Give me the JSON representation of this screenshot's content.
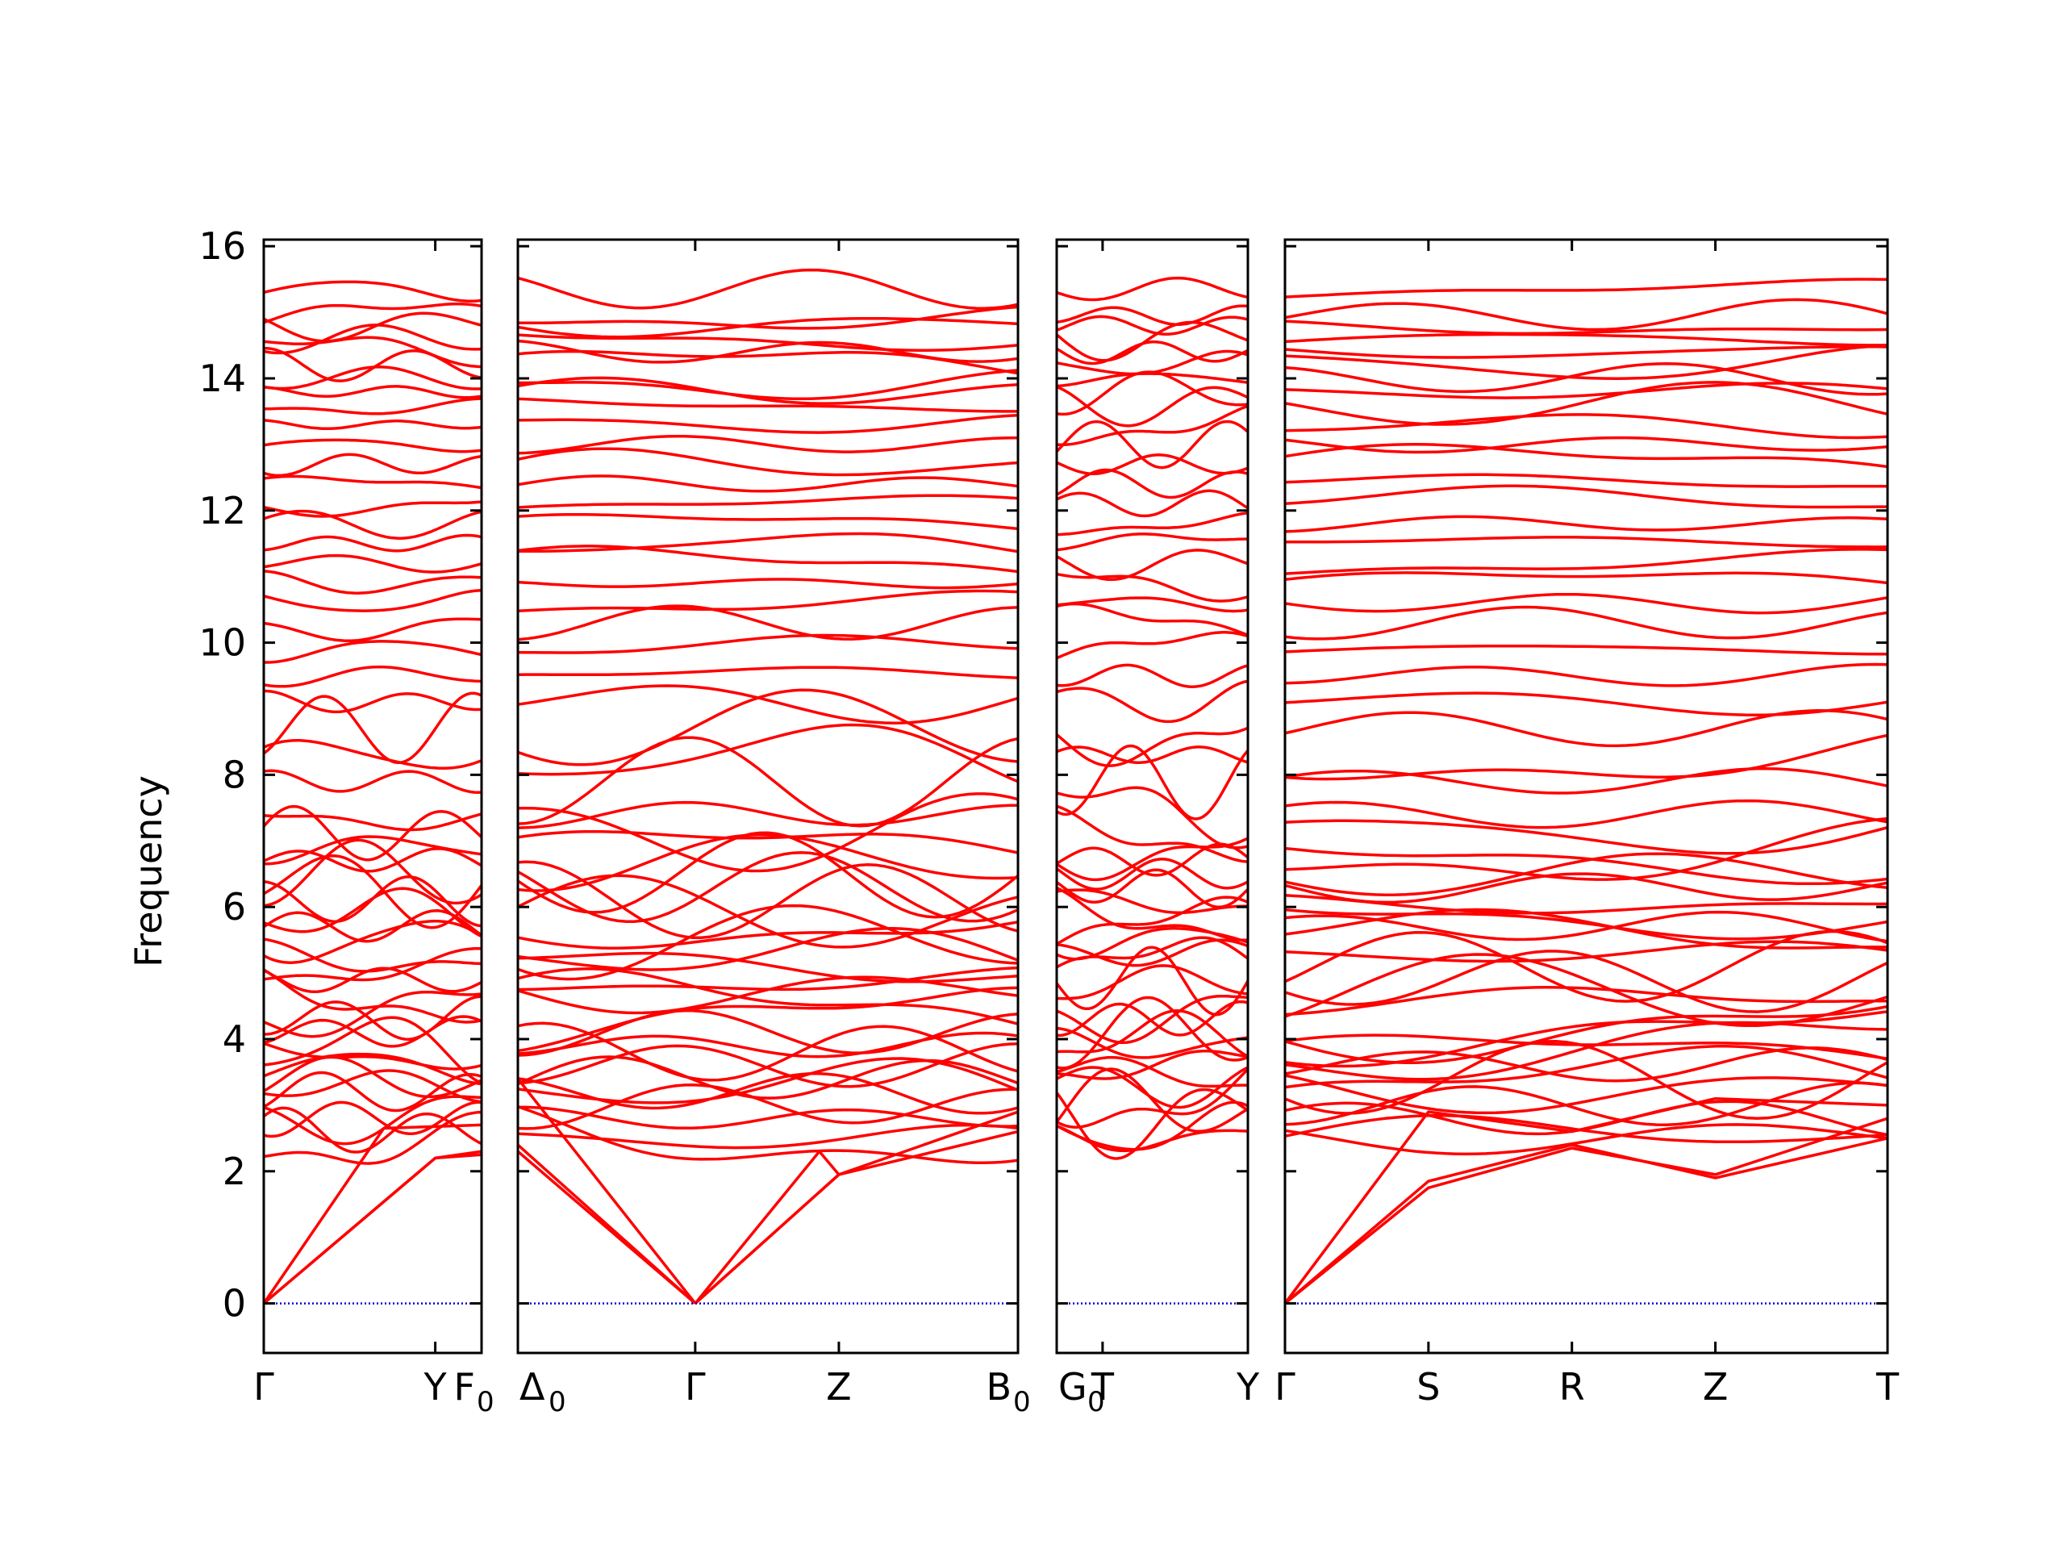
{
  "chart_data": {
    "type": "line",
    "title": "",
    "ylabel": "Frequency",
    "ylim": [
      -0.75,
      16.1
    ],
    "y_ticks": [
      0,
      2,
      4,
      6,
      8,
      10,
      12,
      14,
      16
    ],
    "grid": false,
    "legend": "none",
    "colors": {
      "bands": "#ff0000",
      "zero_line": "#0000cc",
      "frame": "#000000"
    },
    "panels": [
      {
        "name": "panel-1",
        "x_range": [
          0,
          1.27
        ],
        "ticks": [
          {
            "x": 0,
            "label": "Γ"
          },
          {
            "x": 1.0,
            "label": "Y"
          }
        ],
        "edge_label": "F",
        "edge_subscript": "0"
      },
      {
        "name": "panel-2",
        "x_range": [
          0,
          2.82
        ],
        "ticks": [
          {
            "x": 1.0,
            "label": "Γ"
          },
          {
            "x": 1.81,
            "label": "Z"
          }
        ],
        "start_label": "Δ",
        "start_subscript": "0",
        "edge_label": "B",
        "edge_subscript": "0"
      },
      {
        "name": "panel-3",
        "x_range": [
          0,
          1.0
        ],
        "ticks": [
          {
            "x": 0.24,
            "label": "T"
          },
          {
            "x": 1.0,
            "label": "Y"
          }
        ],
        "start_label": "G",
        "start_subscript": "0"
      },
      {
        "name": "panel-4",
        "x_range": [
          0,
          4.2
        ],
        "ticks": [
          {
            "x": 0,
            "label": "Γ"
          },
          {
            "x": 1.0,
            "label": "S"
          },
          {
            "x": 2.0,
            "label": "R"
          },
          {
            "x": 3.0,
            "label": "Z"
          },
          {
            "x": 4.2,
            "label": "T"
          }
        ]
      }
    ],
    "acoustic_branches": [
      {
        "panel": 0,
        "x": [
          0,
          1.0,
          1.27
        ],
        "y": [
          0,
          2.2,
          2.25
        ]
      },
      {
        "panel": 0,
        "x": [
          0,
          1.0,
          1.27
        ],
        "y": [
          0,
          2.2,
          2.3
        ]
      },
      {
        "panel": 0,
        "x": [
          0,
          0.7,
          1.27
        ],
        "y": [
          0,
          2.65,
          2.7
        ]
      },
      {
        "panel": 1,
        "x": [
          0,
          1.0
        ],
        "y": [
          2.3,
          0
        ]
      },
      {
        "panel": 1,
        "x": [
          0,
          1.0
        ],
        "y": [
          2.4,
          0
        ]
      },
      {
        "panel": 1,
        "x": [
          0,
          1.0
        ],
        "y": [
          3.4,
          0
        ]
      },
      {
        "panel": 1,
        "x": [
          1.0,
          1.81,
          2.82
        ],
        "y": [
          0,
          1.95,
          2.6
        ]
      },
      {
        "panel": 1,
        "x": [
          1.0,
          1.81,
          2.82
        ],
        "y": [
          0,
          1.95,
          2.9
        ]
      },
      {
        "panel": 1,
        "x": [
          1.0,
          1.7,
          1.81
        ],
        "y": [
          0,
          2.3,
          1.95
        ]
      },
      {
        "panel": 3,
        "x": [
          0,
          1.0,
          2.0,
          3.0,
          4.2
        ],
        "y": [
          0,
          1.85,
          2.4,
          1.9,
          2.5
        ]
      },
      {
        "panel": 3,
        "x": [
          0,
          1.0,
          2.0,
          3.0,
          4.2
        ],
        "y": [
          0,
          1.75,
          2.35,
          1.95,
          2.8
        ]
      },
      {
        "panel": 3,
        "x": [
          0,
          1.0,
          2.0,
          3.0,
          4.2
        ],
        "y": [
          0,
          2.9,
          2.6,
          3.1,
          3.0
        ]
      }
    ],
    "optical_band_levels": [
      2.5,
      2.6,
      2.8,
      3.0,
      3.2,
      3.3,
      3.4,
      3.6,
      3.8,
      3.9,
      4.1,
      4.3,
      4.5,
      4.7,
      4.9,
      5.1,
      5.3,
      5.5,
      5.7,
      5.9,
      6.1,
      6.3,
      6.5,
      6.7,
      6.9,
      7.1,
      7.4,
      7.9,
      8.3,
      8.7,
      9.1,
      9.5,
      9.9,
      10.3,
      10.6,
      10.9,
      11.2,
      11.5,
      11.8,
      12.1,
      12.4,
      12.7,
      13.0,
      13.3,
      13.6,
      13.8,
      14.0,
      14.2,
      14.4,
      14.6,
      14.8,
      14.95,
      15.35
    ]
  }
}
